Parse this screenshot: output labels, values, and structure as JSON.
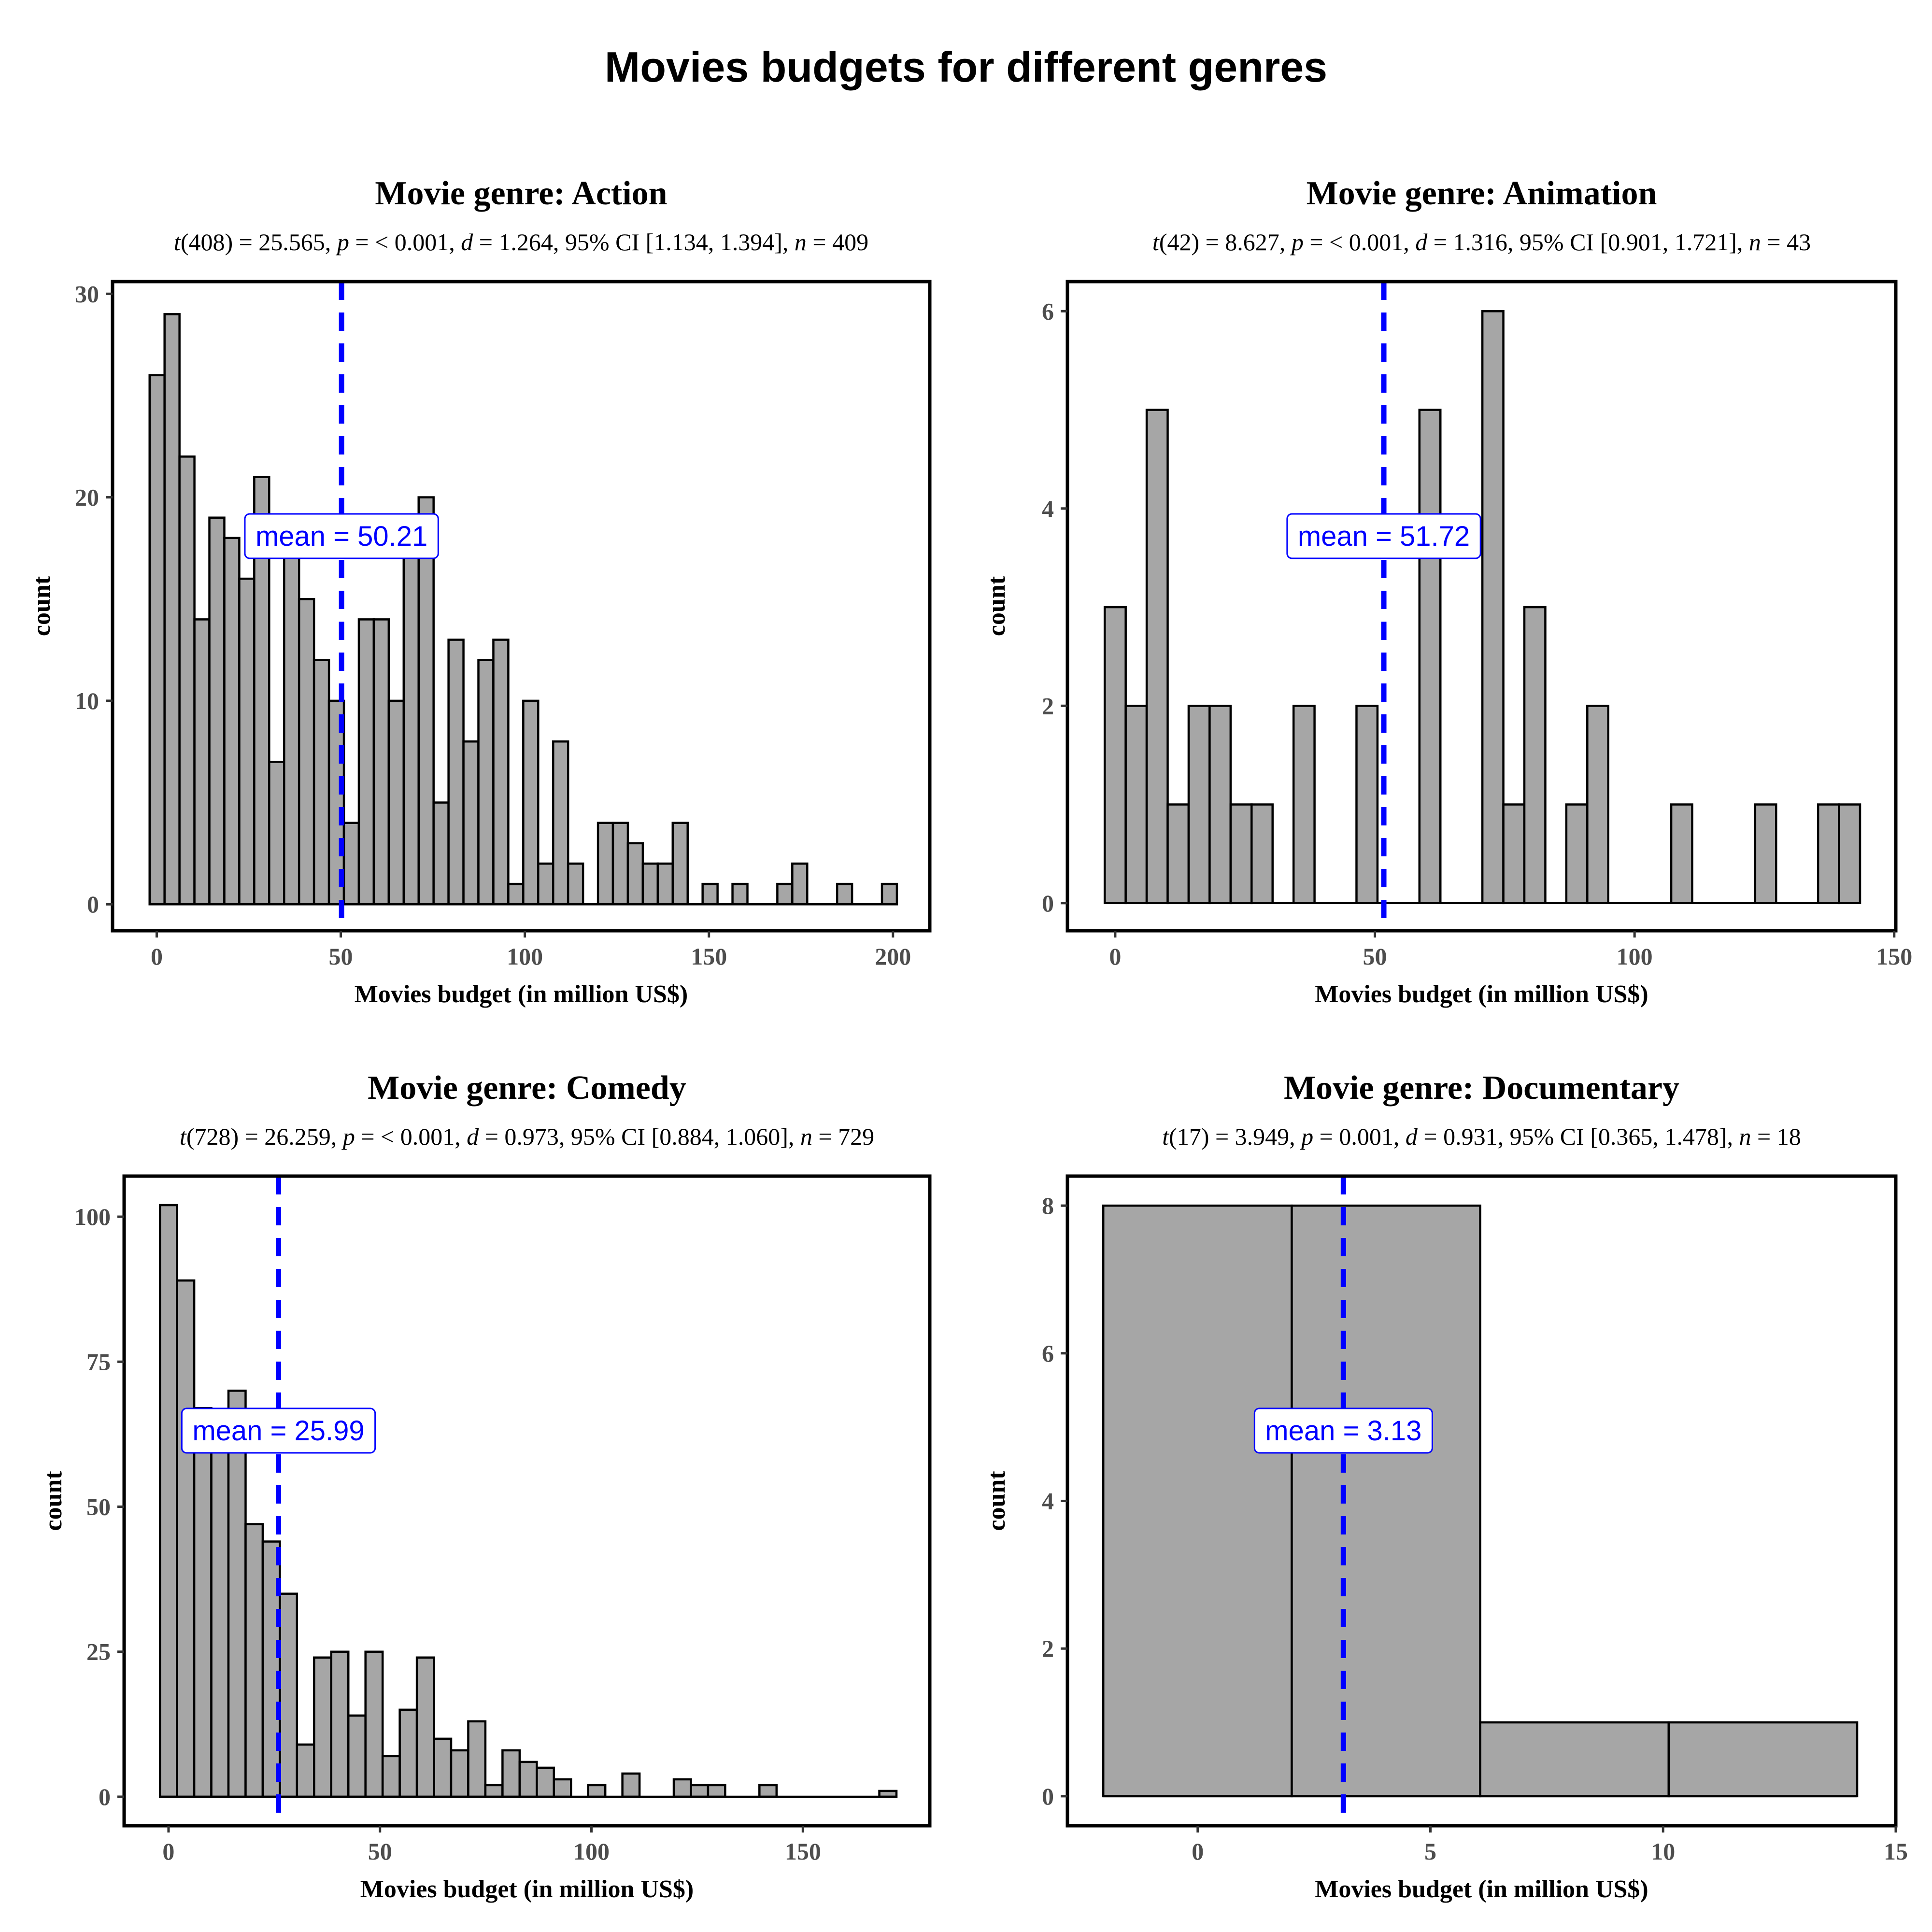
{
  "title": "Movies budgets for different genres",
  "colors": {
    "bar_fill": "#a6a6a6",
    "bar_stroke": "#000000",
    "mean_line": "#0000ff",
    "mean_label_text": "#0000ff",
    "frame": "#000000"
  },
  "chart_data": [
    {
      "type": "bar",
      "panel": "histogram",
      "title": "Movie genre: Action",
      "subtitle": "t(408) = 25.565, p = < 0.001, d = 1.264, 95% CI [1.134, 1.394], n = 409",
      "xlabel": "Movies budget (in million US$)",
      "ylabel": "count",
      "xlim": [
        -12,
        210
      ],
      "ylim": [
        -1.3,
        30.6
      ],
      "xticks": [
        0,
        50,
        100,
        150,
        200
      ],
      "yticks": [
        0,
        10,
        20,
        30
      ],
      "mean": 50.21,
      "mean_label": "mean = 50.21",
      "bin_width": 4.06,
      "bins": [
        {
          "x": -1.93,
          "count": 26
        },
        {
          "x": 2.13,
          "count": 29
        },
        {
          "x": 6.19,
          "count": 22
        },
        {
          "x": 10.25,
          "count": 14
        },
        {
          "x": 14.31,
          "count": 19
        },
        {
          "x": 18.37,
          "count": 18
        },
        {
          "x": 22.43,
          "count": 16
        },
        {
          "x": 26.49,
          "count": 21
        },
        {
          "x": 30.55,
          "count": 7
        },
        {
          "x": 34.61,
          "count": 19
        },
        {
          "x": 38.67,
          "count": 15
        },
        {
          "x": 42.73,
          "count": 12
        },
        {
          "x": 46.79,
          "count": 10
        },
        {
          "x": 50.85,
          "count": 4
        },
        {
          "x": 54.91,
          "count": 14
        },
        {
          "x": 58.97,
          "count": 14
        },
        {
          "x": 63.03,
          "count": 10
        },
        {
          "x": 67.09,
          "count": 19
        },
        {
          "x": 71.15,
          "count": 20
        },
        {
          "x": 75.21,
          "count": 5
        },
        {
          "x": 79.27,
          "count": 13
        },
        {
          "x": 83.33,
          "count": 8
        },
        {
          "x": 87.39,
          "count": 12
        },
        {
          "x": 91.45,
          "count": 13
        },
        {
          "x": 95.51,
          "count": 1
        },
        {
          "x": 99.57,
          "count": 10
        },
        {
          "x": 103.63,
          "count": 2
        },
        {
          "x": 107.69,
          "count": 8
        },
        {
          "x": 111.75,
          "count": 2
        },
        {
          "x": 119.87,
          "count": 4
        },
        {
          "x": 123.93,
          "count": 4
        },
        {
          "x": 127.99,
          "count": 3
        },
        {
          "x": 132.05,
          "count": 2
        },
        {
          "x": 136.11,
          "count": 2
        },
        {
          "x": 140.17,
          "count": 4
        },
        {
          "x": 148.29,
          "count": 1
        },
        {
          "x": 156.41,
          "count": 1
        },
        {
          "x": 168.59,
          "count": 1
        },
        {
          "x": 172.65,
          "count": 2
        },
        {
          "x": 184.83,
          "count": 1
        },
        {
          "x": 197.01,
          "count": 1
        }
      ]
    },
    {
      "type": "bar",
      "panel": "histogram",
      "title": "Movie genre: Animation",
      "subtitle": "t(42) = 8.627, p = < 0.001, d = 1.316, 95% CI [0.901, 1.721], n = 43",
      "xlabel": "Movies budget (in million US$)",
      "ylabel": "count",
      "xlim": [
        -9.2,
        150.3
      ],
      "ylim": [
        -0.28,
        6.3
      ],
      "xticks": [
        0,
        50,
        100,
        150
      ],
      "yticks": [
        0,
        2,
        4,
        6
      ],
      "mean": 51.72,
      "mean_label": "mean = 51.72",
      "bin_width": 4.04,
      "bins": [
        {
          "x": -2.02,
          "count": 3
        },
        {
          "x": 2.02,
          "count": 2
        },
        {
          "x": 6.06,
          "count": 5
        },
        {
          "x": 10.1,
          "count": 1
        },
        {
          "x": 14.14,
          "count": 2
        },
        {
          "x": 18.18,
          "count": 2
        },
        {
          "x": 22.22,
          "count": 1
        },
        {
          "x": 26.26,
          "count": 1
        },
        {
          "x": 34.34,
          "count": 2
        },
        {
          "x": 46.46,
          "count": 2
        },
        {
          "x": 58.58,
          "count": 5
        },
        {
          "x": 70.7,
          "count": 6
        },
        {
          "x": 74.74,
          "count": 1
        },
        {
          "x": 78.78,
          "count": 3
        },
        {
          "x": 86.86,
          "count": 1
        },
        {
          "x": 90.9,
          "count": 2
        },
        {
          "x": 107.06,
          "count": 1
        },
        {
          "x": 123.22,
          "count": 1
        },
        {
          "x": 135.34,
          "count": 1
        },
        {
          "x": 139.38,
          "count": 1
        }
      ]
    },
    {
      "type": "bar",
      "panel": "histogram",
      "title": "Movie genre: Comedy",
      "subtitle": "t(728) = 26.259, p = < 0.001, d = 0.973, 95% CI [0.884, 1.060], n = 729",
      "xlabel": "Movies budget (in million US$)",
      "ylabel": "count",
      "xlim": [
        -10.5,
        180
      ],
      "ylim": [
        -5,
        107
      ],
      "xticks": [
        0,
        50,
        100,
        150
      ],
      "yticks": [
        0,
        25,
        50,
        75,
        100
      ],
      "mean": 25.99,
      "mean_label": "mean = 25.99",
      "bin_width": 4.05,
      "bins": [
        {
          "x": -2.03,
          "count": 102
        },
        {
          "x": 2.02,
          "count": 89
        },
        {
          "x": 6.07,
          "count": 67
        },
        {
          "x": 10.12,
          "count": 61
        },
        {
          "x": 14.17,
          "count": 70
        },
        {
          "x": 18.22,
          "count": 47
        },
        {
          "x": 22.27,
          "count": 44
        },
        {
          "x": 26.32,
          "count": 35
        },
        {
          "x": 30.37,
          "count": 9
        },
        {
          "x": 34.42,
          "count": 24
        },
        {
          "x": 38.47,
          "count": 25
        },
        {
          "x": 42.52,
          "count": 14
        },
        {
          "x": 46.57,
          "count": 25
        },
        {
          "x": 50.62,
          "count": 7
        },
        {
          "x": 54.67,
          "count": 15
        },
        {
          "x": 58.72,
          "count": 24
        },
        {
          "x": 62.77,
          "count": 10
        },
        {
          "x": 66.82,
          "count": 8
        },
        {
          "x": 70.87,
          "count": 13
        },
        {
          "x": 74.92,
          "count": 2
        },
        {
          "x": 78.97,
          "count": 8
        },
        {
          "x": 83.02,
          "count": 6
        },
        {
          "x": 87.07,
          "count": 5
        },
        {
          "x": 91.12,
          "count": 3
        },
        {
          "x": 99.22,
          "count": 2
        },
        {
          "x": 107.32,
          "count": 4
        },
        {
          "x": 119.47,
          "count": 3
        },
        {
          "x": 123.52,
          "count": 2
        },
        {
          "x": 127.57,
          "count": 2
        },
        {
          "x": 139.72,
          "count": 2
        },
        {
          "x": 168.07,
          "count": 1
        }
      ]
    },
    {
      "type": "bar",
      "panel": "histogram",
      "title": "Movie genre: Documentary",
      "subtitle": "t(17) = 3.949, p = 0.001, d = 0.931, 95% CI [0.365, 1.478], n = 18",
      "xlabel": "Movies budget (in million US$)",
      "ylabel": "count",
      "xlim": [
        -2.8,
        15
      ],
      "ylim": [
        -0.4,
        8.4
      ],
      "xticks": [
        0,
        5,
        10,
        15
      ],
      "yticks": [
        0,
        2,
        4,
        6,
        8
      ],
      "mean": 3.13,
      "mean_label": "mean = 3.13",
      "bin_width": 4.05,
      "bins": [
        {
          "x": -2.03,
          "count": 8
        },
        {
          "x": 2.02,
          "count": 8
        },
        {
          "x": 6.07,
          "count": 1
        },
        {
          "x": 10.12,
          "count": 1
        }
      ]
    }
  ]
}
